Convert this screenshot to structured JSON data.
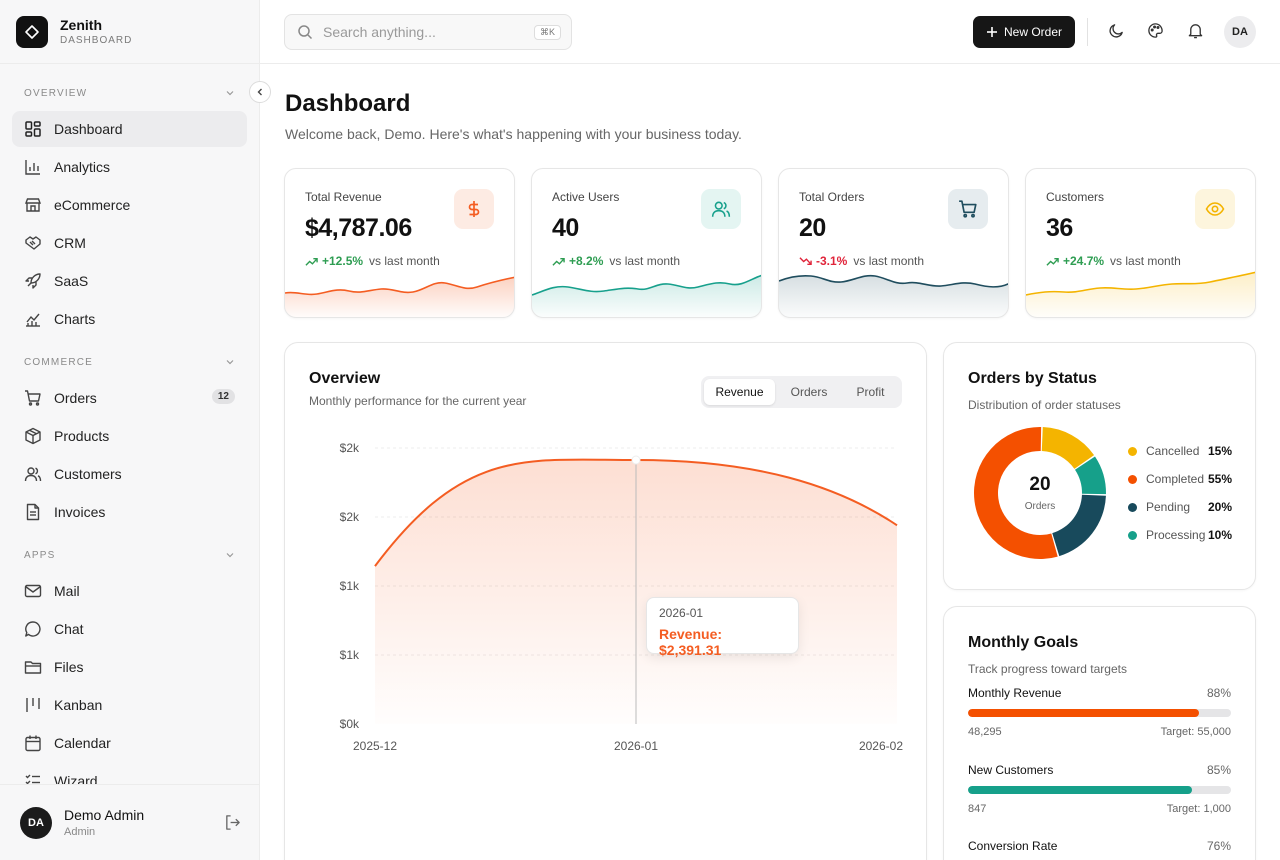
{
  "brand": {
    "name": "Zenith",
    "sub": "DASHBOARD"
  },
  "sidebar": {
    "sections": [
      {
        "title": "OVERVIEW",
        "items": [
          {
            "label": "Dashboard",
            "icon": "layout-grid-icon",
            "active": true
          },
          {
            "label": "Analytics",
            "icon": "bar-chart-icon"
          },
          {
            "label": "eCommerce",
            "icon": "store-icon"
          },
          {
            "label": "CRM",
            "icon": "handshake-icon"
          },
          {
            "label": "SaaS",
            "icon": "rocket-icon"
          },
          {
            "label": "Charts",
            "icon": "chart-line-icon"
          }
        ]
      },
      {
        "title": "COMMERCE",
        "items": [
          {
            "label": "Orders",
            "icon": "cart-icon",
            "badge": "12"
          },
          {
            "label": "Products",
            "icon": "package-icon"
          },
          {
            "label": "Customers",
            "icon": "users-icon"
          },
          {
            "label": "Invoices",
            "icon": "file-text-icon"
          }
        ]
      },
      {
        "title": "APPS",
        "items": [
          {
            "label": "Mail",
            "icon": "mail-icon"
          },
          {
            "label": "Chat",
            "icon": "message-circle-icon"
          },
          {
            "label": "Files",
            "icon": "folder-icon"
          },
          {
            "label": "Kanban",
            "icon": "kanban-icon"
          },
          {
            "label": "Calendar",
            "icon": "calendar-icon"
          },
          {
            "label": "Wizard",
            "icon": "list-checks-icon"
          }
        ]
      }
    ]
  },
  "user": {
    "initials": "DA",
    "name": "Demo Admin",
    "role": "Admin"
  },
  "topbar": {
    "search_placeholder": "Search anything...",
    "search_shortcut": "⌘K",
    "new_order_label": "New Order",
    "avatar_initials": "DA"
  },
  "page": {
    "title": "Dashboard",
    "subtitle": "Welcome back, Demo. Here's what's happening with your business today."
  },
  "stats": [
    {
      "label": "Total Revenue",
      "value": "$4,787.06",
      "change": "+12.5%",
      "vs": "vs last month",
      "trend": "up",
      "icon": "dollar-icon",
      "color": "#f45d22",
      "icon_bg": "#fdebe3"
    },
    {
      "label": "Active Users",
      "value": "40",
      "change": "+8.2%",
      "vs": "vs last month",
      "trend": "up",
      "icon": "users-icon",
      "color": "#17a08c",
      "icon_bg": "#e4f5f2"
    },
    {
      "label": "Total Orders",
      "value": "20",
      "change": "-3.1%",
      "vs": "vs last month",
      "trend": "down",
      "icon": "cart-icon",
      "color": "#1f4d5e",
      "icon_bg": "#e6ecef"
    },
    {
      "label": "Customers",
      "value": "36",
      "change": "+24.7%",
      "vs": "vs last month",
      "trend": "up",
      "icon": "eye-icon",
      "color": "#f4b400",
      "icon_bg": "#fdf5dd"
    }
  ],
  "overview": {
    "title": "Overview",
    "subtitle": "Monthly performance for the current year",
    "tabs": [
      "Revenue",
      "Orders",
      "Profit"
    ],
    "active_tab": "Revenue",
    "tooltip": {
      "date": "2026-01",
      "text": "Revenue: $2,391.31"
    }
  },
  "chart_data": {
    "type": "area",
    "x": [
      "2025-12",
      "2026-01",
      "2026-02"
    ],
    "series": [
      {
        "name": "Revenue",
        "values": [
          1430,
          2391.31,
          1800
        ],
        "color": "#f45d22"
      }
    ],
    "yticks": [
      "$0k",
      "$1k",
      "$1k",
      "$2k",
      "$2k"
    ],
    "ylim": [
      0,
      2500
    ],
    "grid": true
  },
  "orders_status": {
    "title": "Orders by Status",
    "subtitle": "Distribution of order statuses",
    "total": "20",
    "total_label": "Orders",
    "segments": [
      {
        "label": "Cancelled",
        "pct": "15%",
        "value": 15,
        "color": "#f4b400"
      },
      {
        "label": "Completed",
        "pct": "55%",
        "value": 55,
        "color": "#f45000"
      },
      {
        "label": "Pending",
        "pct": "20%",
        "value": 20,
        "color": "#184a5c"
      },
      {
        "label": "Processing",
        "pct": "10%",
        "value": 10,
        "color": "#16a08a"
      }
    ]
  },
  "goals": {
    "title": "Monthly Goals",
    "subtitle": "Track progress toward targets",
    "items": [
      {
        "name": "Monthly Revenue",
        "pct": "88%",
        "fraction": 0.88,
        "current": "48,295",
        "target": "Target: 55,000",
        "color": "#f45000"
      },
      {
        "name": "New Customers",
        "pct": "85%",
        "fraction": 0.85,
        "current": "847",
        "target": "Target: 1,000",
        "color": "#16a08a"
      },
      {
        "name": "Conversion Rate",
        "pct": "76%",
        "fraction": 0.76,
        "current": "",
        "target": "",
        "color": "#184a5c"
      }
    ]
  }
}
